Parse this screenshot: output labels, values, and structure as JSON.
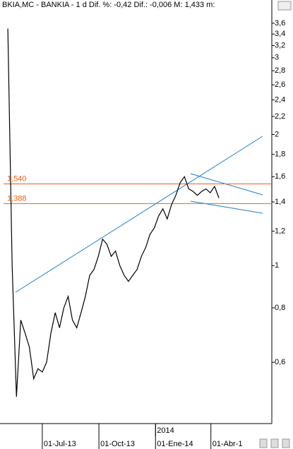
{
  "chart_data": {
    "type": "line",
    "title": "BKIA,MC - BANKIA -  1 d Dif. %: -0,42 Dif.: -0,006 M: 1,433 m:",
    "log_scale": true,
    "x": [
      "2013-05-06",
      "2013-05-13",
      "2013-05-20",
      "2013-05-27",
      "2013-06-03",
      "2013-06-10",
      "2013-06-17",
      "2013-06-24",
      "2013-07-01",
      "2013-07-08",
      "2013-07-15",
      "2013-07-22",
      "2013-07-29",
      "2013-08-05",
      "2013-08-12",
      "2013-08-19",
      "2013-08-26",
      "2013-09-02",
      "2013-09-09",
      "2013-09-16",
      "2013-09-23",
      "2013-09-30",
      "2013-10-07",
      "2013-10-14",
      "2013-10-21",
      "2013-10-28",
      "2013-11-04",
      "2013-11-11",
      "2013-11-18",
      "2013-11-25",
      "2013-12-02",
      "2013-12-09",
      "2013-12-16",
      "2013-12-23",
      "2013-12-30",
      "2014-01-06",
      "2014-01-13",
      "2014-01-20",
      "2014-01-27",
      "2014-02-03",
      "2014-02-10",
      "2014-02-17",
      "2014-02-24",
      "2014-03-03",
      "2014-03-10",
      "2014-03-17",
      "2014-03-24",
      "2014-03-31",
      "2014-04-07",
      "2014-04-14"
    ],
    "series": [
      {
        "name": "BKIA,MC",
        "color": "#000000",
        "values": [
          3.5,
          1.0,
          0.5,
          0.75,
          0.7,
          0.65,
          0.55,
          0.58,
          0.57,
          0.6,
          0.7,
          0.78,
          0.72,
          0.8,
          0.85,
          0.75,
          0.72,
          0.78,
          0.85,
          0.95,
          0.98,
          1.05,
          1.15,
          1.12,
          1.05,
          1.08,
          1.0,
          0.95,
          0.92,
          0.95,
          0.98,
          1.05,
          1.1,
          1.18,
          1.22,
          1.3,
          1.35,
          1.28,
          1.38,
          1.45,
          1.55,
          1.6,
          1.5,
          1.48,
          1.45,
          1.48,
          1.5,
          1.47,
          1.52,
          1.43
        ]
      }
    ],
    "xlim": [
      "2013-04-29",
      "2014-07-09"
    ],
    "xticks": [
      {
        "value": "2013-07-01",
        "label": "01-Jul-13"
      },
      {
        "value": "2013-10-01",
        "label": "01-Oct-13"
      },
      {
        "value": "2014-01-01",
        "label": "01-Ene-14"
      },
      {
        "value": "2014-04-01",
        "label": "01-Abr-1"
      }
    ],
    "year_marker": {
      "value": "2014-01-01",
      "label": "2014"
    },
    "ylim": [
      0.434,
      4.07
    ],
    "yticks": [
      {
        "value": 3.6,
        "label": "3,6"
      },
      {
        "value": 3.4,
        "label": "3,4"
      },
      {
        "value": 3.2,
        "label": "3,2"
      },
      3,
      {
        "value": 2.8,
        "label": "2,8"
      },
      {
        "value": 2.6,
        "label": "2,6"
      },
      {
        "value": 2.4,
        "label": "2,4"
      },
      {
        "value": 2.2,
        "label": "2,2"
      },
      2,
      {
        "value": 1.8,
        "label": "1,8"
      },
      {
        "value": 1.6,
        "label": "1,6"
      },
      {
        "value": 1.4,
        "label": "1,4"
      },
      {
        "value": 1.2,
        "label": "1,2"
      },
      1,
      {
        "value": 0.8,
        "label": "0,8"
      },
      {
        "value": 0.6,
        "label": "0,6"
      }
    ],
    "reference_lines": [
      {
        "value": 1.54,
        "label": "1,540",
        "color": "#e8601c"
      },
      {
        "value": 1.388,
        "label": "1,388",
        "color": "#e8601c"
      }
    ]
  }
}
